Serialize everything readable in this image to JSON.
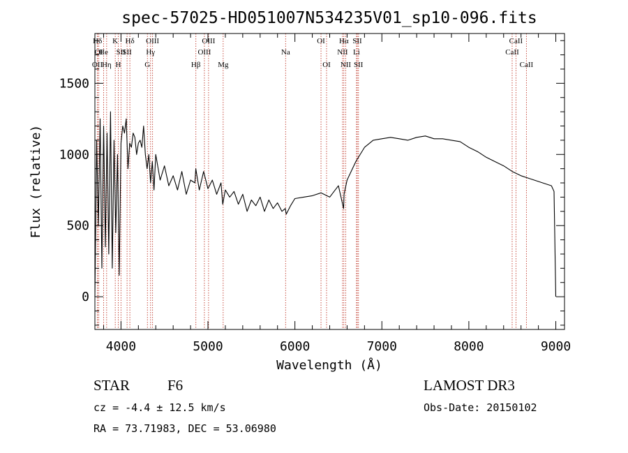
{
  "chart_data": {
    "type": "line",
    "title": "spec-57025-HD051007N534235V01_sp10-096.fits",
    "xlabel": "Wavelength (Å)",
    "ylabel": "Flux (relative)",
    "xlim": [
      3700,
      9100
    ],
    "ylim": [
      -230,
      1850
    ],
    "xticks": [
      4000,
      5000,
      6000,
      7000,
      8000,
      9000
    ],
    "xtick_labels": [
      "4000",
      "5000",
      "6000",
      "7000",
      "8000",
      "9000"
    ],
    "yticks": [
      0,
      500,
      1000,
      1500
    ],
    "ytick_labels": [
      "0",
      "500",
      "1000",
      "1500"
    ],
    "series": [
      {
        "name": "flux",
        "x": [
          3700,
          3720,
          3740,
          3760,
          3780,
          3800,
          3820,
          3840,
          3860,
          3880,
          3900,
          3920,
          3940,
          3960,
          3980,
          4000,
          4020,
          4040,
          4060,
          4080,
          4100,
          4120,
          4140,
          4160,
          4180,
          4200,
          4220,
          4240,
          4260,
          4280,
          4300,
          4320,
          4340,
          4360,
          4380,
          4400,
          4450,
          4500,
          4550,
          4600,
          4650,
          4700,
          4750,
          4800,
          4850,
          4860,
          4900,
          4950,
          5000,
          5050,
          5100,
          5150,
          5170,
          5200,
          5250,
          5300,
          5350,
          5400,
          5450,
          5500,
          5550,
          5600,
          5650,
          5700,
          5750,
          5800,
          5850,
          5890,
          5900,
          5950,
          6000,
          6100,
          6200,
          6300,
          6400,
          6500,
          6560,
          6565,
          6600,
          6700,
          6800,
          6900,
          7000,
          7100,
          7200,
          7300,
          7400,
          7500,
          7600,
          7700,
          7800,
          7900,
          8000,
          8100,
          8200,
          8300,
          8400,
          8500,
          8600,
          8700,
          8800,
          8900,
          8950,
          8980,
          9000
        ],
        "y": [
          0,
          1100,
          500,
          1250,
          200,
          1200,
          350,
          1150,
          300,
          1300,
          200,
          1100,
          450,
          1000,
          150,
          1080,
          1200,
          1150,
          1250,
          900,
          1080,
          1050,
          1150,
          1120,
          1000,
          1080,
          1100,
          1050,
          1200,
          1000,
          900,
          1000,
          800,
          950,
          750,
          1000,
          820,
          920,
          780,
          850,
          750,
          880,
          720,
          820,
          800,
          900,
          750,
          880,
          760,
          820,
          720,
          800,
          650,
          750,
          700,
          740,
          650,
          720,
          600,
          680,
          640,
          700,
          600,
          680,
          620,
          660,
          600,
          620,
          580,
          640,
          690,
          700,
          710,
          730,
          700,
          780,
          620,
          720,
          820,
          950,
          1050,
          1100,
          1110,
          1120,
          1110,
          1100,
          1120,
          1130,
          1110,
          1110,
          1100,
          1090,
          1050,
          1020,
          980,
          950,
          920,
          880,
          850,
          830,
          810,
          790,
          780,
          740,
          0
        ]
      }
    ],
    "line_markers": [
      {
        "label": "Hδ",
        "x": 3730,
        "row": 1
      },
      {
        "label": "OI",
        "x": 3745,
        "row": 2
      },
      {
        "label": "OII",
        "x": 3728,
        "row": 3
      },
      {
        "label": "He",
        "x": 3800,
        "row": 2
      },
      {
        "label": "Hη",
        "x": 3835,
        "row": 3
      },
      {
        "label": "K",
        "x": 3934,
        "row": 1
      },
      {
        "label": "H",
        "x": 3969,
        "row": 3
      },
      {
        "label": "SII",
        "x": 4000,
        "row": 2
      },
      {
        "label": "Hδ",
        "x": 4102,
        "row": 1
      },
      {
        "label": "SII",
        "x": 4070,
        "row": 2
      },
      {
        "label": "OIII",
        "x": 4363,
        "row": 1
      },
      {
        "label": "Hγ",
        "x": 4340,
        "row": 2
      },
      {
        "label": "G",
        "x": 4304,
        "row": 3
      },
      {
        "label": "Hβ",
        "x": 4861,
        "row": 3
      },
      {
        "label": "OIII",
        "x": 5007,
        "row": 1
      },
      {
        "label": "OIII",
        "x": 4959,
        "row": 2
      },
      {
        "label": "Mg",
        "x": 5175,
        "row": 3
      },
      {
        "label": "Na",
        "x": 5893,
        "row": 2
      },
      {
        "label": "OI",
        "x": 6300,
        "row": 1
      },
      {
        "label": "OI",
        "x": 6364,
        "row": 3
      },
      {
        "label": "Hα",
        "x": 6563,
        "row": 1
      },
      {
        "label": "NII",
        "x": 6548,
        "row": 2
      },
      {
        "label": "NII",
        "x": 6584,
        "row": 3
      },
      {
        "label": "SII",
        "x": 6717,
        "row": 1
      },
      {
        "label": "Li",
        "x": 6708,
        "row": 2
      },
      {
        "label": "SII",
        "x": 6731,
        "row": 3
      },
      {
        "label": "CaII",
        "x": 8542,
        "row": 1
      },
      {
        "label": "CaII",
        "x": 8498,
        "row": 2
      },
      {
        "label": "CaII",
        "x": 8662,
        "row": 3
      }
    ]
  },
  "info": {
    "class_label": "STAR",
    "subclass": "F6",
    "survey": "LAMOST DR3",
    "redshift": "cz = -4.4 ± 12.5 km/s",
    "obs_date": "Obs-Date: 20150102",
    "coords": "RA =  73.71983, DEC =  53.06980"
  }
}
